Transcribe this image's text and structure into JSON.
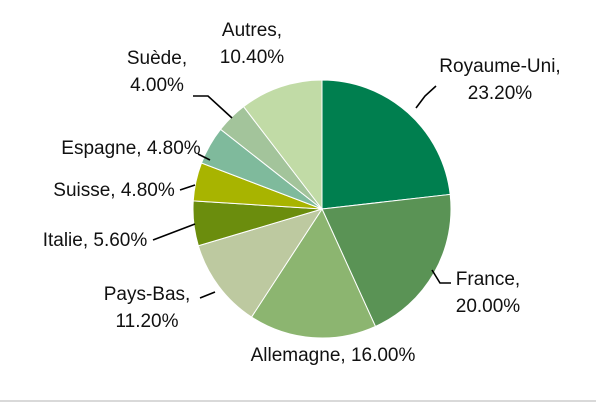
{
  "chart_data": {
    "type": "pie",
    "start_angle_deg": 0,
    "direction": "clockwise",
    "slices": [
      {
        "label": "Royaume-Uni",
        "value": 23.2,
        "value_text": "23.20%",
        "color": "#007f4f"
      },
      {
        "label": "France",
        "value": 20.0,
        "value_text": "20.00%",
        "color": "#5a9355"
      },
      {
        "label": "Allemagne",
        "value": 16.0,
        "value_text": "16.00%",
        "color": "#8cb570"
      },
      {
        "label": "Pays-Bas",
        "value": 11.2,
        "value_text": "11.20%",
        "color": "#bdc9a0"
      },
      {
        "label": "Italie",
        "value": 5.6,
        "value_text": "5.60%",
        "color": "#6b8d0d"
      },
      {
        "label": "Suisse",
        "value": 4.8,
        "value_text": "4.80%",
        "color": "#a8b400"
      },
      {
        "label": "Espagne",
        "value": 4.8,
        "value_text": "4.80%",
        "color": "#7fba9c"
      },
      {
        "label": "Suède",
        "value": 4.0,
        "value_text": "4.00%",
        "color": "#a3c49b"
      },
      {
        "label": "Autres",
        "value": 10.4,
        "value_text": "10.40%",
        "color": "#c1dba6"
      }
    ]
  }
}
